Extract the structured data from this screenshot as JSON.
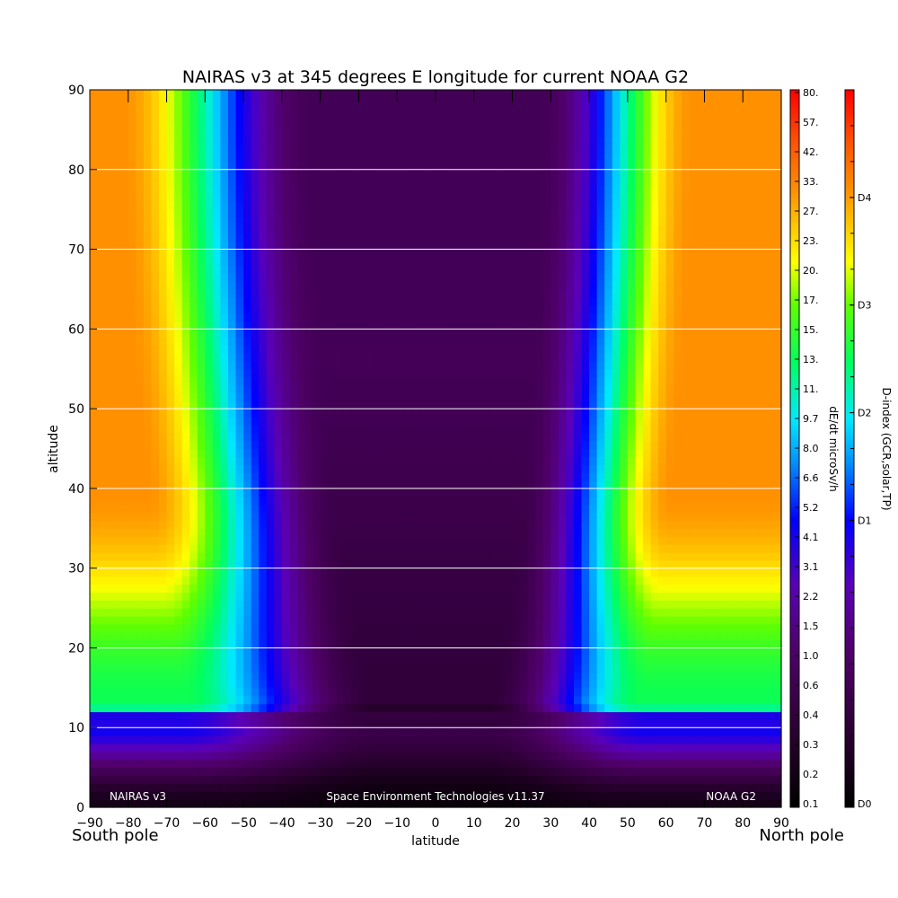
{
  "chart_data": {
    "type": "heatmap",
    "title": "NAIRAS v3 at 345 degrees E longitude for current NOAA G2",
    "xlabel": "latitude",
    "ylabel": "altitude",
    "x_left_note": "South pole",
    "x_right_note": "North pole",
    "xlim": [
      -90,
      90
    ],
    "ylim": [
      0,
      90
    ],
    "x_ticks": [
      -90,
      -80,
      -70,
      -60,
      -50,
      -40,
      -30,
      -20,
      -10,
      0,
      10,
      20,
      30,
      40,
      50,
      60,
      70,
      80,
      90
    ],
    "y_ticks": [
      0,
      10,
      20,
      30,
      40,
      50,
      60,
      70,
      80,
      90
    ],
    "grid": "horizontal",
    "footer_left": "NAIRAS v3",
    "footer_center": "Space Environment Technologies v11.37",
    "footer_right": "NOAA G2",
    "colorbar": {
      "label": "dE/dt microSv/h",
      "ticks": [
        "0.1",
        "0.2",
        "0.3",
        "0.4",
        "0.6",
        "1.0",
        "1.5",
        "2.2",
        "3.1",
        "4.1",
        "5.2",
        "6.6",
        "8.0",
        "9.7",
        "11.",
        "13.",
        "15.",
        "17.",
        "20.",
        "23.",
        "27.",
        "33.",
        "42.",
        "57.",
        "80."
      ]
    },
    "dindex_bar": {
      "label": "D-index (GCR,solar,TP)",
      "ticks": [
        "D0",
        "D1",
        "D2",
        "D3",
        "D4"
      ],
      "tick_fractions": [
        0.0,
        0.4,
        0.55,
        0.7,
        0.85
      ]
    },
    "colors": {
      "scale": [
        "#000000",
        "#2a0030",
        "#50006a",
        "#5a00b8",
        "#0000ff",
        "#0090ff",
        "#00e8ff",
        "#00ff60",
        "#60ff00",
        "#ffff00",
        "#ff9000",
        "#ff5000",
        "#ff0000"
      ]
    }
  }
}
